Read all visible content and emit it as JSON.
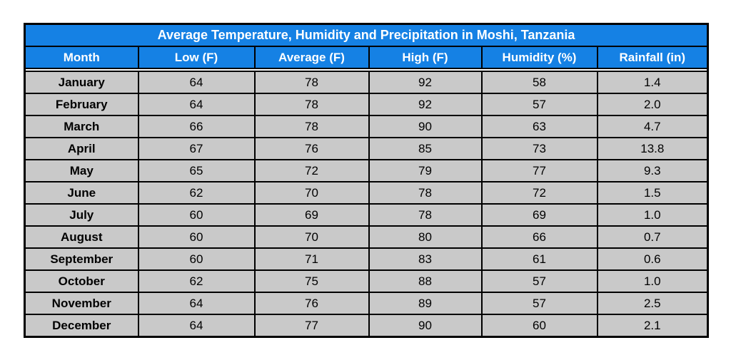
{
  "colors": {
    "header_bg": "#1581e4",
    "header_text": "#ffffff",
    "row_bg": "#c9c9c9",
    "body_text": "#000000",
    "border": "#000000",
    "page_bg": "#ffffff"
  },
  "chart_data": {
    "type": "table",
    "title": "Average Temperature, Humidity and Precipitation in Moshi, Tanzania",
    "columns": [
      "Month",
      "Low (F)",
      "Average (F)",
      "High (F)",
      "Humidity (%)",
      "Rainfall (in)"
    ],
    "rows": [
      [
        "January",
        "64",
        "78",
        "92",
        "58",
        "1.4"
      ],
      [
        "February",
        "64",
        "78",
        "92",
        "57",
        "2.0"
      ],
      [
        "March",
        "66",
        "78",
        "90",
        "63",
        "4.7"
      ],
      [
        "April",
        "67",
        "76",
        "85",
        "73",
        "13.8"
      ],
      [
        "May",
        "65",
        "72",
        "79",
        "77",
        "9.3"
      ],
      [
        "June",
        "62",
        "70",
        "78",
        "72",
        "1.5"
      ],
      [
        "July",
        "60",
        "69",
        "78",
        "69",
        "1.0"
      ],
      [
        "August",
        "60",
        "70",
        "80",
        "66",
        "0.7"
      ],
      [
        "September",
        "60",
        "71",
        "83",
        "61",
        "0.6"
      ],
      [
        "October",
        "62",
        "75",
        "88",
        "57",
        "1.0"
      ],
      [
        "November",
        "64",
        "76",
        "89",
        "57",
        "2.5"
      ],
      [
        "December",
        "64",
        "77",
        "90",
        "60",
        "2.1"
      ]
    ]
  }
}
